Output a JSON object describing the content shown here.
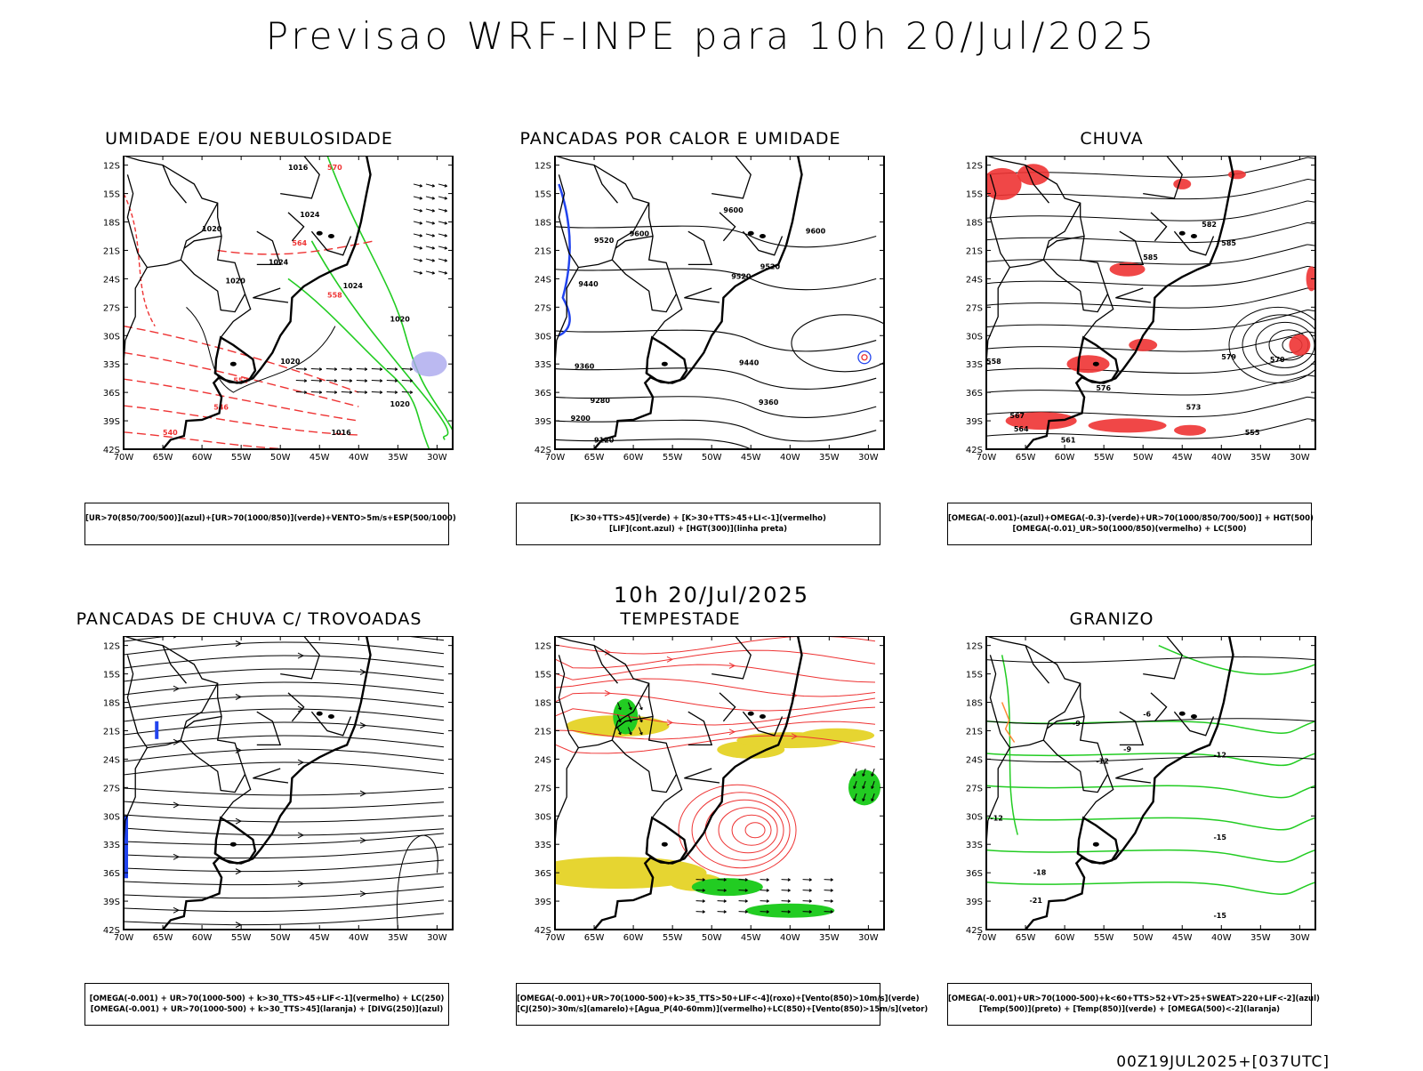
{
  "title": "Previsao WRF-INPE  para 10h 20/Jul/2025",
  "mid_title": "10h 20/Jul/2025",
  "footer": "00Z19JUL2025+[037UTC]",
  "axes": {
    "lat_labels": [
      "12S",
      "15S",
      "18S",
      "21S",
      "24S",
      "27S",
      "30S",
      "33S",
      "36S",
      "39S",
      "42S"
    ],
    "lon_labels": [
      "70W",
      "65W",
      "60W",
      "55W",
      "50W",
      "45W",
      "40W",
      "35W",
      "30W"
    ]
  },
  "colors": {
    "green": "#22cc22",
    "red": "#ee3333",
    "blue": "#2244ee",
    "yellow": "#e6d531",
    "lavender": "#aaa8ee",
    "orange": "#ff8833",
    "black": "#000000"
  },
  "panels": [
    {
      "title": "UMIDADE E/OU NEBULOSIDADE",
      "legend": [
        "[UR>70(850/700/500)](azul)+[UR>70(1000/850)](verde)+VENTO>5m/s+ESP(500/1000)"
      ],
      "labels": [
        "1020",
        "1016",
        "1024",
        "1020",
        "1020",
        "1016",
        "1020",
        "1020",
        "1024",
        "1024",
        "570",
        "564",
        "558",
        "552",
        "546",
        "540"
      ]
    },
    {
      "title": "PANCADAS POR CALOR E UMIDADE",
      "legend": [
        "[K>30+TTS>45](verde) + [K>30+TTS>45+LI<-1](vermelho)",
        "[LIF](cont.azul) + [HGT(300)](linha preta)"
      ],
      "labels": [
        "9600",
        "9600",
        "9520",
        "9520",
        "9440",
        "9440",
        "9360",
        "9360",
        "9280",
        "9200",
        "9120",
        "9600",
        "9520"
      ]
    },
    {
      "title": "CHUVA",
      "legend": [
        "[OMEGA(-0.001)-(azul)+OMEGA(-0.3)-(verde)+UR>70(1000/850/700/500)] + HGT(500)",
        "[OMEGA(-0.01)_UR>50(1000/850)(vermelho) + LC(500)"
      ],
      "labels": [
        "585",
        "585",
        "582",
        "579",
        "576",
        "573",
        "570",
        "567",
        "564",
        "561",
        "558",
        "555"
      ]
    },
    {
      "title": "PANCADAS DE CHUVA C/ TROVOADAS",
      "legend": [
        "[OMEGA(-0.001) + UR>70(1000-500) + k>30_TTS>45+LIF<-1](vermelho) + LC(250)",
        "[OMEGA(-0.001) + UR>70(1000-500) + k>30_TTS>45](laranja) + [DIVG(250)](azul)"
      ],
      "labels": []
    },
    {
      "title": "TEMPESTADE",
      "legend": [
        "[OMEGA(-0.001)+UR>70(1000-500)+k>35_TTS>50+LIF<-4](roxo)+[Vento(850)>10m/s](verde)",
        "[CJ(250)>30m/s](amarelo)+[Agua_P(40-60mm)](vermelho)+LC(850)+[Vento(850)>15m/s](vetor)"
      ],
      "labels": []
    },
    {
      "title": "GRANIZO",
      "legend": [
        "[OMEGA(-0.001)+UR>70(1000-500)+k<60+TTS>52+VT>25+SWEAT>220+LIF<-2](azul)",
        "[Temp(500)](preto) + [Temp(850)](verde) + [OMEGA(500)<-2](laranja)"
      ],
      "labels": [
        "-9",
        "-6",
        "-12",
        "-12",
        "-15",
        "-18",
        "-21",
        "-12",
        "-15",
        "-9"
      ]
    }
  ]
}
